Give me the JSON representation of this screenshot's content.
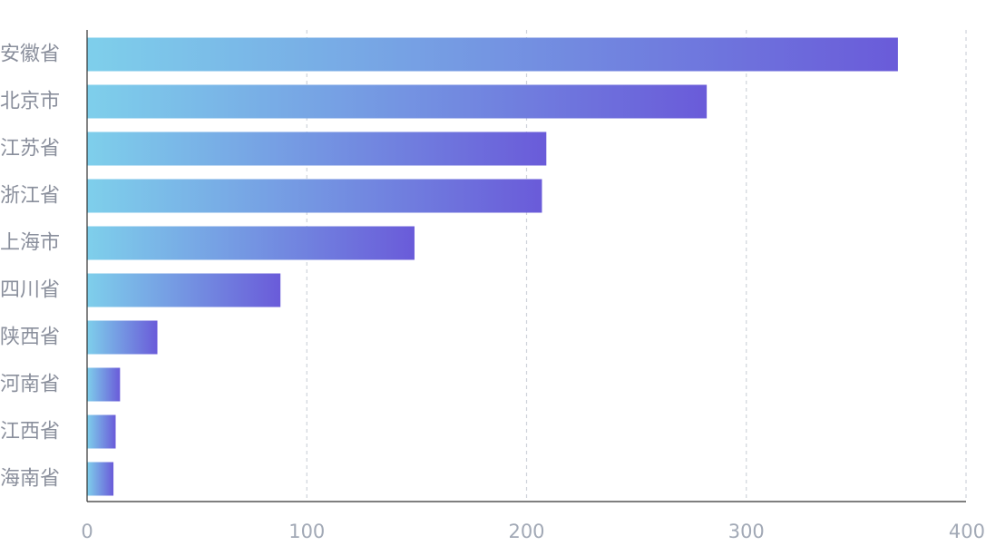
{
  "chart_data": {
    "type": "bar",
    "orientation": "horizontal",
    "categories": [
      "安徽省",
      "北京市",
      "江苏省",
      "浙江省",
      "上海市",
      "四川省",
      "陕西省",
      "河南省",
      "江西省",
      "海南省"
    ],
    "values": [
      369,
      282,
      209,
      207,
      149,
      88,
      32,
      15,
      13,
      12
    ],
    "xlim": [
      0,
      400
    ],
    "x_ticks": [
      "0",
      "100",
      "200",
      "300",
      "400"
    ],
    "grid": "vertical dashed",
    "title": "",
    "xlabel": "",
    "ylabel": "",
    "colors": {
      "bar_gradient_start": "#7ecfeb",
      "bar_gradient_end": "#6a5bd9",
      "grid": "#cfd3da",
      "axis": "#333333",
      "category_text": "#8a8f9c",
      "tick_text": "#a2a9b6"
    }
  }
}
